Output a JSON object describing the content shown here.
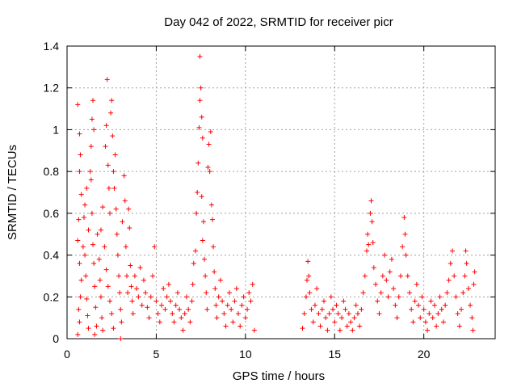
{
  "chart_data": {
    "type": "scatter",
    "title": "Day 042 of 2022, SRMTID for receiver picr",
    "xlabel": "GPS time / hours",
    "ylabel": "SRMTID / TECUs",
    "xlim": [
      0,
      24
    ],
    "ylim": [
      0,
      1.4
    ],
    "x_ticks": [
      0,
      5,
      10,
      15,
      20
    ],
    "x_tick_labels": [
      "0",
      "5",
      "10",
      "15",
      "20"
    ],
    "y_ticks": [
      0,
      0.2,
      0.4,
      0.6,
      0.8,
      1.0,
      1.2,
      1.4
    ],
    "y_tick_labels": [
      "0",
      "0.2",
      "0.4",
      "0.6",
      "0.8",
      "1",
      "1.2",
      "1.4"
    ],
    "grid": true,
    "marker": "plus",
    "color": "#ff0000",
    "series": [
      {
        "name": "SRMTID",
        "points": [
          [
            0.6,
            1.12
          ],
          [
            0.7,
            0.98
          ],
          [
            0.75,
            0.88
          ],
          [
            0.8,
            0.69
          ],
          [
            0.7,
            0.8
          ],
          [
            0.65,
            0.57
          ],
          [
            0.6,
            0.47
          ],
          [
            0.7,
            0.36
          ],
          [
            0.8,
            0.28
          ],
          [
            0.75,
            0.2
          ],
          [
            0.65,
            0.14
          ],
          [
            0.7,
            0.08
          ],
          [
            0.6,
            0.02
          ],
          [
            0.9,
            0.44
          ],
          [
            0.95,
            0.58
          ],
          [
            1.0,
            0.4
          ],
          [
            1.05,
            0.3
          ],
          [
            1.1,
            0.19
          ],
          [
            1.15,
            0.11
          ],
          [
            1.2,
            0.05
          ],
          [
            1.0,
            0.64
          ],
          [
            1.1,
            0.72
          ],
          [
            1.2,
            0.52
          ],
          [
            1.3,
            0.8
          ],
          [
            1.35,
            0.92
          ],
          [
            1.4,
            1.05
          ],
          [
            1.45,
            1.14
          ],
          [
            1.5,
            1.0
          ],
          [
            1.35,
            0.76
          ],
          [
            1.4,
            0.6
          ],
          [
            1.45,
            0.45
          ],
          [
            1.5,
            0.36
          ],
          [
            1.55,
            0.25
          ],
          [
            1.6,
            0.15
          ],
          [
            1.65,
            0.06
          ],
          [
            1.55,
            0.02
          ],
          [
            1.7,
            0.5
          ],
          [
            1.8,
            0.38
          ],
          [
            1.85,
            0.28
          ],
          [
            1.9,
            0.2
          ],
          [
            1.95,
            0.1
          ],
          [
            2.0,
            0.04
          ],
          [
            1.9,
            0.52
          ],
          [
            2.0,
            0.63
          ],
          [
            2.1,
            0.44
          ],
          [
            2.15,
            0.92
          ],
          [
            2.2,
            1.02
          ],
          [
            2.25,
            1.24
          ],
          [
            2.3,
            0.83
          ],
          [
            2.35,
            0.72
          ],
          [
            2.4,
            0.6
          ],
          [
            2.45,
            1.08
          ],
          [
            2.5,
            1.14
          ],
          [
            2.55,
            0.97
          ],
          [
            2.6,
            0.8
          ],
          [
            2.65,
            0.72
          ],
          [
            2.7,
            0.88
          ],
          [
            2.75,
            0.62
          ],
          [
            2.8,
            0.5
          ],
          [
            2.85,
            0.4
          ],
          [
            2.9,
            0.3
          ],
          [
            2.95,
            0.22
          ],
          [
            3.0,
            0.14
          ],
          [
            3.05,
            0.08
          ],
          [
            3.0,
            0.0
          ],
          [
            2.2,
            0.33
          ],
          [
            2.3,
            0.25
          ],
          [
            2.4,
            0.18
          ],
          [
            2.5,
            0.12
          ],
          [
            2.6,
            0.05
          ],
          [
            3.1,
            0.56
          ],
          [
            3.2,
            0.78
          ],
          [
            3.25,
            0.66
          ],
          [
            3.3,
            0.44
          ],
          [
            3.35,
            0.3
          ],
          [
            3.4,
            0.22
          ],
          [
            3.45,
            0.62
          ],
          [
            3.5,
            0.53
          ],
          [
            3.55,
            0.35
          ],
          [
            3.6,
            0.25
          ],
          [
            3.65,
            0.18
          ],
          [
            3.7,
            0.12
          ],
          [
            3.8,
            0.3
          ],
          [
            3.9,
            0.24
          ],
          [
            4.0,
            0.2
          ],
          [
            4.1,
            0.34
          ],
          [
            4.2,
            0.16
          ],
          [
            4.3,
            0.28
          ],
          [
            4.4,
            0.22
          ],
          [
            4.5,
            0.15
          ],
          [
            4.6,
            0.1
          ],
          [
            4.7,
            0.2
          ],
          [
            4.8,
            0.3
          ],
          [
            4.9,
            0.44
          ],
          [
            5.0,
            0.18
          ],
          [
            5.1,
            0.12
          ],
          [
            5.2,
            0.08
          ],
          [
            5.3,
            0.16
          ],
          [
            5.4,
            0.24
          ],
          [
            5.5,
            0.14
          ],
          [
            5.6,
            0.2
          ],
          [
            5.7,
            0.26
          ],
          [
            5.8,
            0.18
          ],
          [
            5.9,
            0.12
          ],
          [
            6.0,
            0.08
          ],
          [
            6.1,
            0.16
          ],
          [
            6.2,
            0.22
          ],
          [
            6.3,
            0.14
          ],
          [
            6.4,
            0.1
          ],
          [
            6.5,
            0.04
          ],
          [
            6.6,
            0.12
          ],
          [
            6.7,
            0.2
          ],
          [
            6.8,
            0.14
          ],
          [
            6.9,
            0.08
          ],
          [
            7.0,
            0.18
          ],
          [
            7.05,
            0.26
          ],
          [
            7.1,
            0.36
          ],
          [
            7.2,
            0.42
          ],
          [
            7.25,
            0.6
          ],
          [
            7.3,
            0.7
          ],
          [
            7.35,
            0.84
          ],
          [
            7.4,
            1.01
          ],
          [
            7.45,
            1.14
          ],
          [
            7.5,
            1.2
          ],
          [
            7.45,
            1.35
          ],
          [
            7.55,
            1.06
          ],
          [
            7.6,
            0.96
          ],
          [
            7.55,
            0.68
          ],
          [
            7.65,
            0.56
          ],
          [
            7.6,
            0.47
          ],
          [
            7.7,
            0.38
          ],
          [
            7.75,
            0.3
          ],
          [
            7.8,
            0.22
          ],
          [
            7.85,
            0.14
          ],
          [
            7.9,
            0.82
          ],
          [
            7.95,
            0.93
          ],
          [
            8.0,
            0.8
          ],
          [
            8.05,
            0.99
          ],
          [
            8.1,
            0.64
          ],
          [
            8.15,
            0.57
          ],
          [
            8.2,
            0.44
          ],
          [
            8.25,
            0.32
          ],
          [
            8.3,
            0.24
          ],
          [
            8.35,
            0.16
          ],
          [
            8.4,
            0.1
          ],
          [
            8.5,
            0.2
          ],
          [
            8.6,
            0.28
          ],
          [
            8.7,
            0.18
          ],
          [
            8.8,
            0.12
          ],
          [
            8.9,
            0.06
          ],
          [
            9.0,
            0.16
          ],
          [
            9.1,
            0.22
          ],
          [
            9.2,
            0.14
          ],
          [
            9.3,
            0.08
          ],
          [
            9.4,
            0.18
          ],
          [
            9.5,
            0.24
          ],
          [
            9.6,
            0.12
          ],
          [
            9.7,
            0.06
          ],
          [
            9.8,
            0.16
          ],
          [
            9.9,
            0.2
          ],
          [
            10.0,
            0.1
          ],
          [
            10.1,
            0.14
          ],
          [
            10.2,
            0.22
          ],
          [
            10.3,
            0.18
          ],
          [
            10.4,
            0.26
          ],
          [
            10.5,
            0.04
          ],
          [
            13.2,
            0.05
          ],
          [
            13.3,
            0.12
          ],
          [
            13.4,
            0.2
          ],
          [
            13.45,
            0.28
          ],
          [
            13.5,
            0.37
          ],
          [
            13.55,
            0.3
          ],
          [
            13.6,
            0.22
          ],
          [
            13.7,
            0.14
          ],
          [
            13.8,
            0.08
          ],
          [
            13.9,
            0.16
          ],
          [
            14.0,
            0.24
          ],
          [
            14.1,
            0.12
          ],
          [
            14.2,
            0.06
          ],
          [
            14.3,
            0.14
          ],
          [
            14.4,
            0.18
          ],
          [
            14.5,
            0.1
          ],
          [
            14.6,
            0.04
          ],
          [
            14.7,
            0.12
          ],
          [
            14.8,
            0.2
          ],
          [
            14.9,
            0.14
          ],
          [
            15.0,
            0.08
          ],
          [
            15.1,
            0.16
          ],
          [
            15.2,
            0.12
          ],
          [
            15.3,
            0.04
          ],
          [
            15.4,
            0.1
          ],
          [
            15.5,
            0.18
          ],
          [
            15.6,
            0.14
          ],
          [
            15.7,
            0.06
          ],
          [
            15.8,
            0.12
          ],
          [
            15.9,
            0.08
          ],
          [
            16.0,
            0.04
          ],
          [
            16.1,
            0.1
          ],
          [
            16.2,
            0.16
          ],
          [
            16.3,
            0.12
          ],
          [
            16.4,
            0.06
          ],
          [
            16.5,
            0.14
          ],
          [
            16.6,
            0.22
          ],
          [
            16.7,
            0.3
          ],
          [
            16.8,
            0.42
          ],
          [
            16.85,
            0.5
          ],
          [
            16.9,
            0.45
          ],
          [
            17.0,
            0.6
          ],
          [
            17.05,
            0.66
          ],
          [
            17.1,
            0.56
          ],
          [
            17.15,
            0.46
          ],
          [
            17.2,
            0.34
          ],
          [
            17.3,
            0.26
          ],
          [
            17.4,
            0.18
          ],
          [
            17.5,
            0.12
          ],
          [
            17.6,
            0.22
          ],
          [
            17.7,
            0.3
          ],
          [
            17.8,
            0.4
          ],
          [
            17.9,
            0.28
          ],
          [
            18.0,
            0.2
          ],
          [
            18.1,
            0.32
          ],
          [
            18.2,
            0.38
          ],
          [
            18.3,
            0.24
          ],
          [
            18.4,
            0.16
          ],
          [
            18.5,
            0.1
          ],
          [
            18.6,
            0.2
          ],
          [
            18.7,
            0.3
          ],
          [
            18.8,
            0.44
          ],
          [
            18.9,
            0.58
          ],
          [
            18.95,
            0.5
          ],
          [
            19.0,
            0.4
          ],
          [
            19.1,
            0.3
          ],
          [
            19.2,
            0.22
          ],
          [
            19.3,
            0.14
          ],
          [
            19.4,
            0.08
          ],
          [
            19.5,
            0.18
          ],
          [
            19.6,
            0.26
          ],
          [
            19.7,
            0.16
          ],
          [
            19.8,
            0.1
          ],
          [
            19.9,
            0.2
          ],
          [
            20.0,
            0.14
          ],
          [
            20.1,
            0.08
          ],
          [
            20.2,
            0.04
          ],
          [
            20.3,
            0.12
          ],
          [
            20.4,
            0.18
          ],
          [
            20.5,
            0.1
          ],
          [
            20.6,
            0.16
          ],
          [
            20.7,
            0.06
          ],
          [
            20.8,
            0.12
          ],
          [
            20.9,
            0.2
          ],
          [
            21.0,
            0.14
          ],
          [
            21.1,
            0.08
          ],
          [
            21.2,
            0.16
          ],
          [
            21.3,
            0.22
          ],
          [
            21.4,
            0.28
          ],
          [
            21.5,
            0.36
          ],
          [
            21.6,
            0.42
          ],
          [
            21.7,
            0.3
          ],
          [
            21.8,
            0.2
          ],
          [
            21.9,
            0.12
          ],
          [
            22.0,
            0.06
          ],
          [
            22.1,
            0.14
          ],
          [
            22.2,
            0.22
          ],
          [
            22.3,
            0.3
          ],
          [
            22.35,
            0.42
          ],
          [
            22.4,
            0.36
          ],
          [
            22.5,
            0.24
          ],
          [
            22.6,
            0.16
          ],
          [
            22.7,
            0.1
          ],
          [
            22.75,
            0.04
          ],
          [
            22.8,
            0.26
          ],
          [
            22.85,
            0.32
          ]
        ]
      }
    ]
  }
}
